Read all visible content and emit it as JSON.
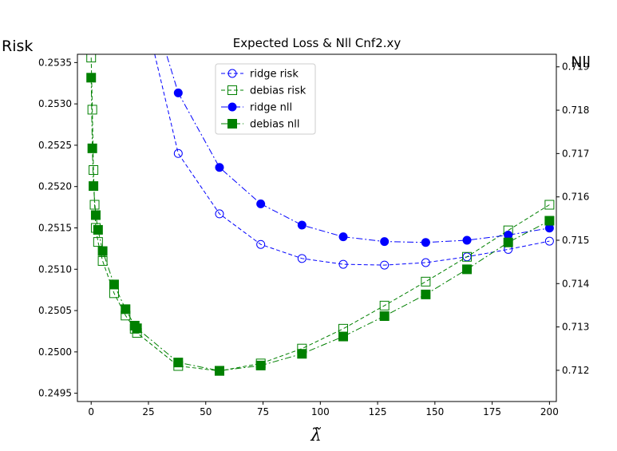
{
  "chart_data": {
    "type": "line",
    "title": "Expected Loss & Nll Cnf2.xy",
    "xlabel": "λ̃",
    "ylabel_left": "Risk",
    "ylabel_right": "Nll",
    "xlim": [
      -6,
      203
    ],
    "ylim_left": [
      0.2494,
      0.2536
    ],
    "ylim_right": [
      0.71128,
      0.71929
    ],
    "x_ticks": [
      0,
      25,
      50,
      75,
      100,
      125,
      150,
      175,
      200
    ],
    "y_left_ticks": [
      0.2495,
      0.25,
      0.2505,
      0.251,
      0.2515,
      0.252,
      0.2525,
      0.253,
      0.2535
    ],
    "y_left_tick_labels": [
      "0.2495",
      "0.2500",
      "0.2505",
      "0.2510",
      "0.2515",
      "0.2520",
      "0.2525",
      "0.2530",
      "0.2535"
    ],
    "y_right_ticks": [
      0.712,
      0.713,
      0.714,
      0.715,
      0.716,
      0.717,
      0.718,
      0.719
    ],
    "y_right_tick_labels": [
      "0.712",
      "0.713",
      "0.714",
      "0.715",
      "0.716",
      "0.717",
      "0.718",
      "0.719"
    ],
    "legend_position": "top-center",
    "grid": false,
    "series": [
      {
        "name": "ridge risk",
        "axis": "left",
        "color": "#0000ff",
        "marker": "circle-open",
        "linestyle": "dashed",
        "x": [
          20.0,
          38.0,
          56.0,
          74.0,
          92.0,
          110.0,
          128.0,
          146.0,
          164.0,
          182.0,
          200.0
        ],
        "y": [
          0.2545,
          0.2524,
          0.25167,
          0.2513,
          0.25113,
          0.25106,
          0.25105,
          0.25108,
          0.25115,
          0.25124,
          0.25134
        ]
      },
      {
        "name": "debias risk",
        "axis": "left",
        "color": "#008000",
        "marker": "square-open",
        "linestyle": "dashed",
        "x": [
          0.0,
          0.5,
          1.0,
          1.5,
          2.0,
          3.0,
          5.0,
          10.0,
          15.0,
          19.0,
          20.0,
          38.0,
          56.0,
          74.0,
          92.0,
          110.0,
          128.0,
          146.0,
          164.0,
          182.0,
          200.0
        ],
        "y": [
          0.25356,
          0.25293,
          0.2522,
          0.25178,
          0.2515,
          0.25133,
          0.2511,
          0.25071,
          0.25044,
          0.25028,
          0.25023,
          0.24983,
          0.24977,
          0.24986,
          0.25004,
          0.25028,
          0.25056,
          0.25085,
          0.25115,
          0.25147,
          0.25178
        ]
      },
      {
        "name": "ridge nll",
        "axis": "right",
        "color": "#0000ff",
        "marker": "circle-filled",
        "linestyle": "dashdot",
        "x": [
          20.0,
          38.0,
          56.0,
          74.0,
          92.0,
          110.0,
          128.0,
          146.0,
          164.0,
          182.0,
          200.0
        ],
        "y": [
          0.7215,
          0.7184,
          0.71668,
          0.71584,
          0.71535,
          0.71508,
          0.71497,
          0.71495,
          0.715,
          0.71512,
          0.71528
        ]
      },
      {
        "name": "debias nll",
        "axis": "right",
        "color": "#008000",
        "marker": "square-filled",
        "linestyle": "dashdot",
        "x": [
          0.0,
          0.5,
          1.0,
          2.0,
          3.0,
          5.0,
          10.0,
          15.0,
          19.0,
          20.0,
          38.0,
          56.0,
          74.0,
          92.0,
          110.0,
          128.0,
          146.0,
          164.0,
          182.0,
          200.0
        ],
        "y": [
          0.71875,
          0.71712,
          0.71625,
          0.71558,
          0.71524,
          0.71475,
          0.71398,
          0.71341,
          0.71303,
          0.71297,
          0.71218,
          0.71199,
          0.71211,
          0.71238,
          0.71278,
          0.71325,
          0.71375,
          0.71433,
          0.71495,
          0.71545
        ]
      }
    ]
  }
}
